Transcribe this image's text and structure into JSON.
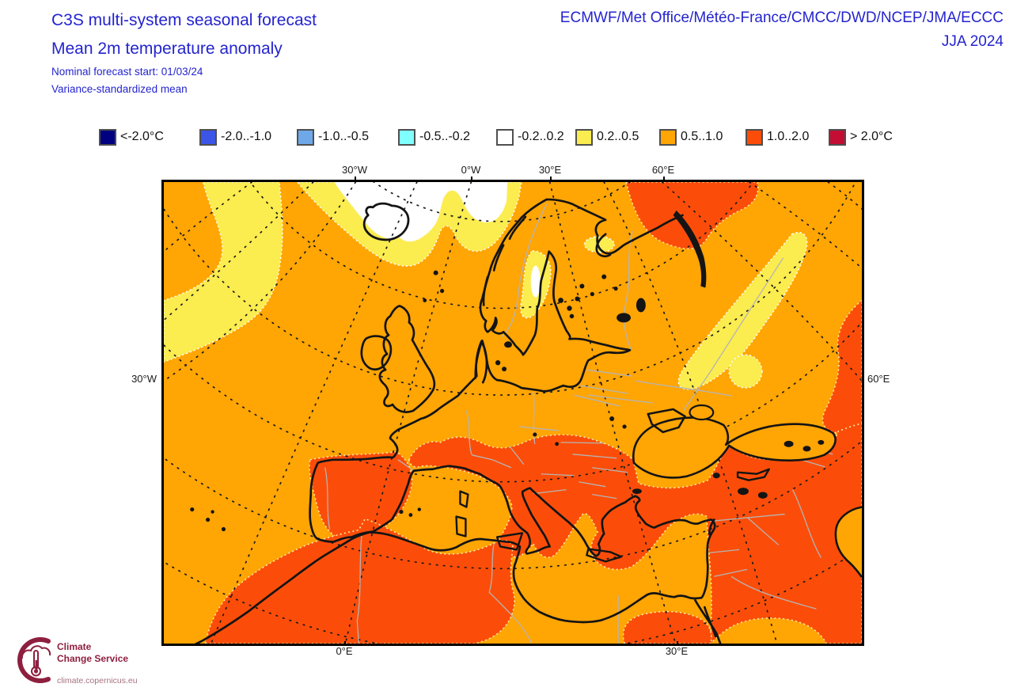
{
  "header": {
    "title_line1": "C3S multi-system seasonal forecast",
    "title_line2": "Mean 2m temperature anomaly",
    "subtitle_line1": "Nominal forecast start: 01/03/24",
    "subtitle_line2": "Variance-standardized mean",
    "centers": "ECMWF/Met Office/Météo-France/CMCC/DWD/NCEP/JMA/ECCC",
    "season": "JJA 2024",
    "accent_color": "#2424cf"
  },
  "chart_data": {
    "type": "heatmap",
    "title": "Mean 2m temperature anomaly (variance-standardized mean), JJA 2024, nominal forecast start 01/03/24",
    "region": "Europe / North Africa / Middle East",
    "units": "°C anomaly",
    "scale_bins": [
      "<-2.0°C",
      "-2.0..-1.0",
      "-1.0..-0.5",
      "-0.5..-0.2",
      "-0.2..0.2",
      "0.2..0.5",
      "0.5..1.0",
      "1.0..2.0",
      "> 2.0°C"
    ],
    "scale_colors": [
      "#000080",
      "#3b55e6",
      "#6fa8e8",
      "#80ffff",
      "#ffffff",
      "#fbec4f",
      "#ffa504",
      "#fb4d09",
      "#c40d33"
    ],
    "dominant_value": "0.5..1.0",
    "features": [
      {
        "area": "North Atlantic west of Ireland",
        "value": "0.2..0.5"
      },
      {
        "area": "Sea north of Iceland",
        "value": "-0.2..0.2"
      },
      {
        "area": "Gulf of Bothnia",
        "value": "0.2..0.5 with -0.2..0.2 core"
      },
      {
        "area": "White Sea",
        "value": "0.2..0.5"
      },
      {
        "area": "Ural band (Russia)",
        "value": "0.2..0.5"
      },
      {
        "area": "Arctic Russia (top right)",
        "value": "1.0..2.0"
      },
      {
        "area": "Iberia interior",
        "value": "1.0..2.0"
      },
      {
        "area": "S France, N Italy, Adriatic, Balkans, Aegean, Anatolia",
        "value": "1.0..2.0"
      },
      {
        "area": "Middle East / Levant / Caucasus",
        "value": "1.0..2.0"
      },
      {
        "area": "Morocco / Algeria interior",
        "value": "1.0..2.0"
      },
      {
        "area": "Egypt bottom-centre blob",
        "value": "1.0..2.0"
      },
      {
        "area": "Mediterranean Sea, Black Sea, Libya coast",
        "value": "0.5..1.0"
      }
    ],
    "graticule": "dotted black, conic fan",
    "axis_ticks": {
      "top": [
        "30°W",
        "0°W",
        "30°E",
        "60°E"
      ],
      "left": [
        "30°W"
      ],
      "right": [
        "60°E"
      ],
      "bottom": [
        "0°E",
        "30°E"
      ]
    }
  },
  "legend": {
    "items": [
      {
        "label": "<-2.0°C",
        "color": "#000080"
      },
      {
        "label": "-2.0..-1.0",
        "color": "#3b55e6"
      },
      {
        "label": "-1.0..-0.5",
        "color": "#6fa8e8"
      },
      {
        "label": "-0.5..-0.2",
        "color": "#80ffff"
      },
      {
        "label": "-0.2..0.2",
        "color": "#ffffff"
      },
      {
        "label": "0.2..0.5",
        "color": "#fbec4f"
      },
      {
        "label": "0.5..1.0",
        "color": "#ffa504"
      },
      {
        "label": "1.0..2.0",
        "color": "#fb4d09"
      },
      {
        "label": "> 2.0°C",
        "color": "#c40d33"
      }
    ]
  },
  "map": {
    "axis_labels": {
      "top": [
        "30°W",
        "0°W",
        "30°E",
        "60°E"
      ],
      "left": [
        "30°W"
      ],
      "right": [
        "60°E"
      ],
      "bottom": [
        "0°E",
        "30°E"
      ]
    },
    "colors": {
      "background": "#ffa504",
      "anom_02_05": "#fbec4f",
      "anom_10_20": "#fb4d09",
      "neutral": "#ffffff",
      "coastline": "#141414",
      "country_border": "#b5b5b5"
    }
  },
  "footer": {
    "logo_line1": "Climate",
    "logo_line2": "Change Service",
    "logo_url": "climate.copernicus.eu",
    "logo_color": "#8e1f3f"
  }
}
